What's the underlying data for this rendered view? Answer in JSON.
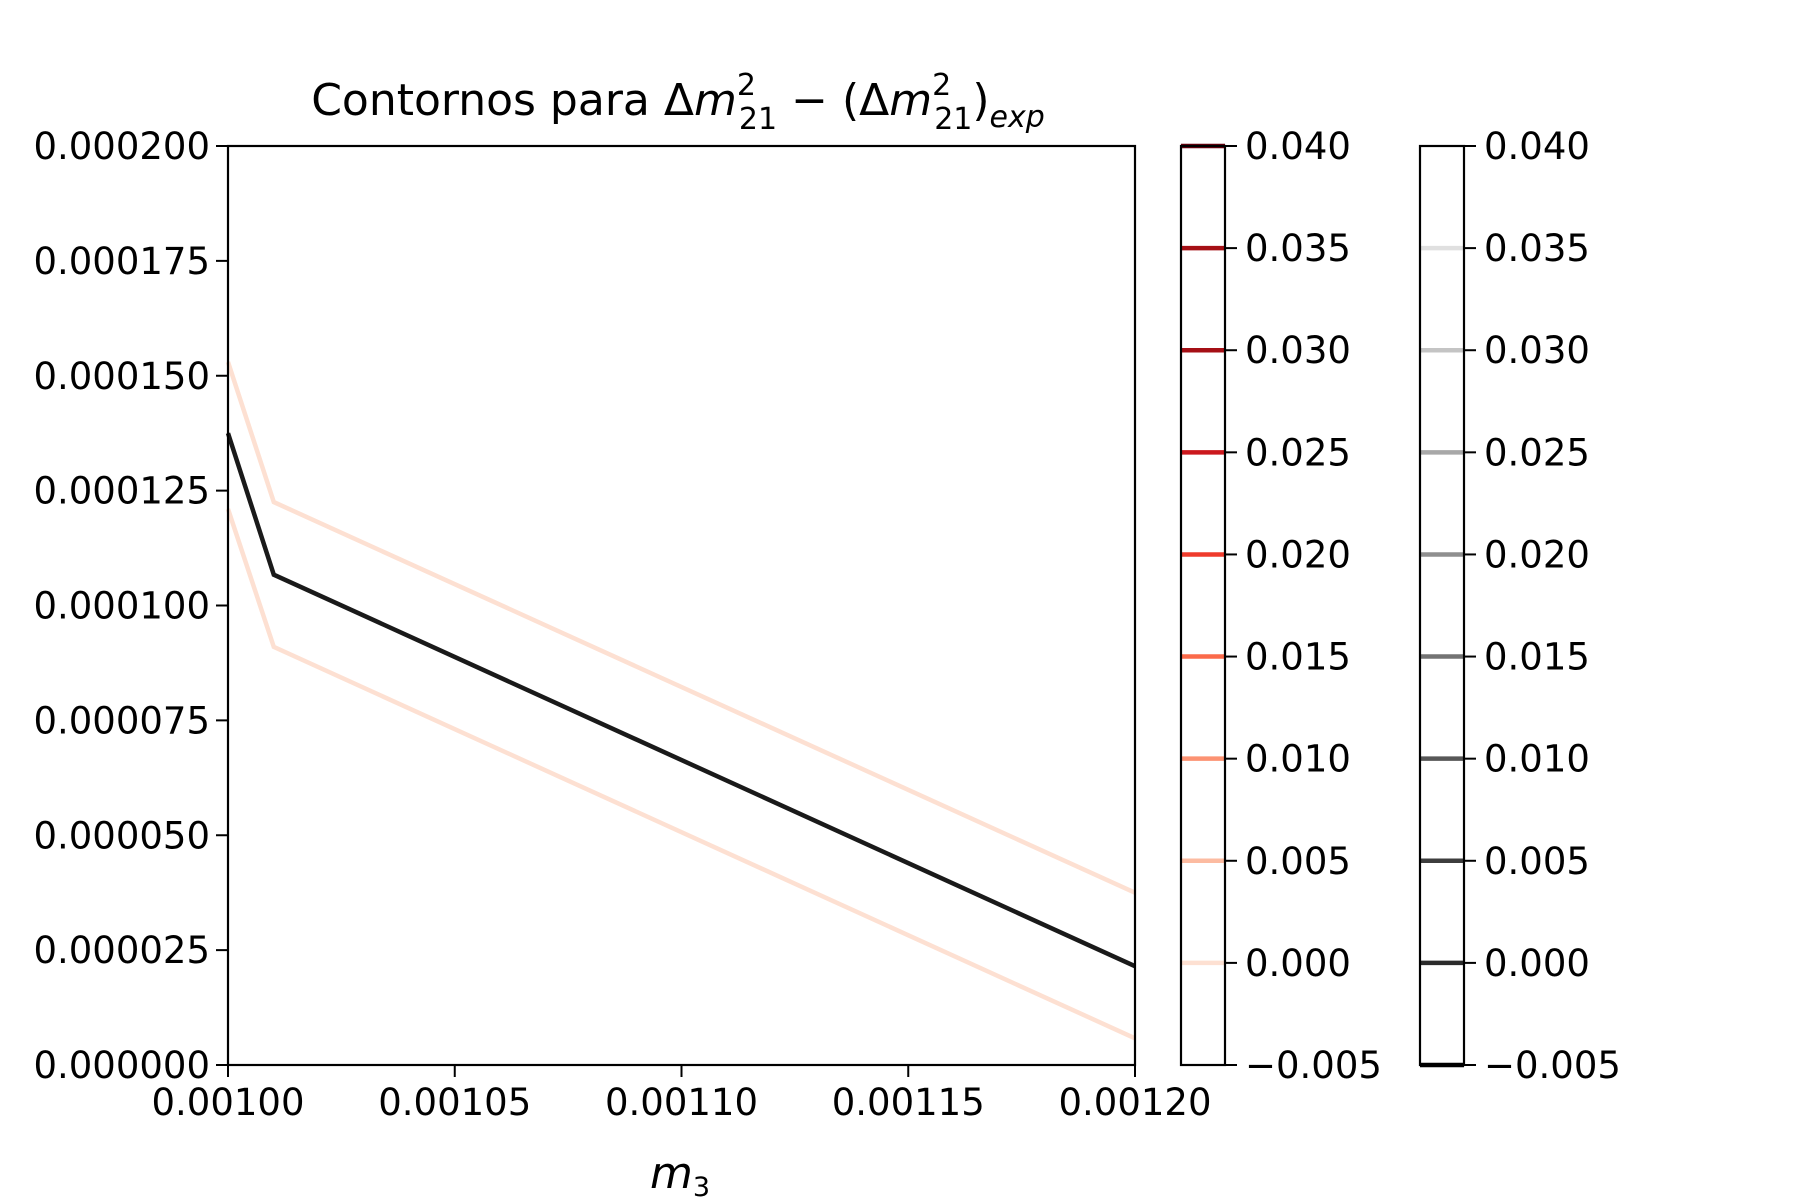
{
  "chart_data": {
    "type": "line",
    "title": {
      "prefix": "Contornos para Δ",
      "m1": "m",
      "sup1": "2",
      "sub1": "21",
      "mid": " − (Δ",
      "m2": "m",
      "sup2": "2",
      "sub2": "21",
      "close": ")",
      "sub3": "exp"
    },
    "xlabel": {
      "var": "m",
      "sub": "3"
    },
    "ylabel": "",
    "xlim": [
      0.001,
      0.0012
    ],
    "ylim": [
      0.0,
      0.0002
    ],
    "x_ticks": [
      0.001,
      0.00105,
      0.0011,
      0.00115,
      0.0012
    ],
    "x_tick_labels": [
      "0.00100",
      "0.00105",
      "0.00110",
      "0.00115",
      "0.00120"
    ],
    "y_ticks": [
      0.0,
      2.5e-05,
      5e-05,
      7.5e-05,
      0.0001,
      0.000125,
      0.00015,
      0.000175,
      0.0002
    ],
    "y_tick_labels": [
      "0.000000",
      "0.000025",
      "0.000050",
      "0.000075",
      "0.000100",
      "0.000125",
      "0.000150",
      "0.000175",
      "0.000200"
    ],
    "series": [
      {
        "color": "#fde0d2",
        "x": [
          0.001,
          0.0010101,
          0.0012
        ],
        "y": [
          0.000153,
          0.0001225,
          3.75e-05
        ]
      },
      {
        "color": "#fde0d2",
        "x": [
          0.001,
          0.0010101,
          0.0012
        ],
        "y": [
          0.000121,
          9.1e-05,
          5.8e-06
        ]
      },
      {
        "color": "#1a1a1a",
        "x": [
          0.001,
          0.0010101,
          0.0012
        ],
        "y": [
          0.0001375,
          0.0001067,
          2.15e-05
        ]
      }
    ],
    "colorbars": [
      {
        "ticks": [
          -0.005,
          0.0,
          0.005,
          0.01,
          0.015,
          0.02,
          0.025,
          0.03,
          0.035,
          0.04
        ],
        "tick_labels": [
          "−0.005",
          "0.000",
          "0.005",
          "0.010",
          "0.015",
          "0.020",
          "0.025",
          "0.030",
          "0.035",
          "0.040"
        ],
        "level_colors": [
          "#ffffff",
          "#fde0d2",
          "#fcbba1",
          "#fc9272",
          "#fb6a4a",
          "#ef3b2c",
          "#cb181d",
          "#a50f15",
          "#a50f15",
          "#67000d"
        ]
      },
      {
        "ticks": [
          -0.005,
          0.0,
          0.005,
          0.01,
          0.015,
          0.02,
          0.025,
          0.03,
          0.035,
          0.04
        ],
        "tick_labels": [
          "−0.005",
          "0.000",
          "0.005",
          "0.010",
          "0.015",
          "0.020",
          "0.025",
          "0.030",
          "0.035",
          "0.040"
        ],
        "level_colors": [
          "#000000",
          "#2b2b2b",
          "#3d3d3d",
          "#575757",
          "#737373",
          "#8f8f8f",
          "#a8a8a8",
          "#c4c4c4",
          "#e0e0e0",
          "#ffffff"
        ]
      }
    ],
    "grid": false
  }
}
